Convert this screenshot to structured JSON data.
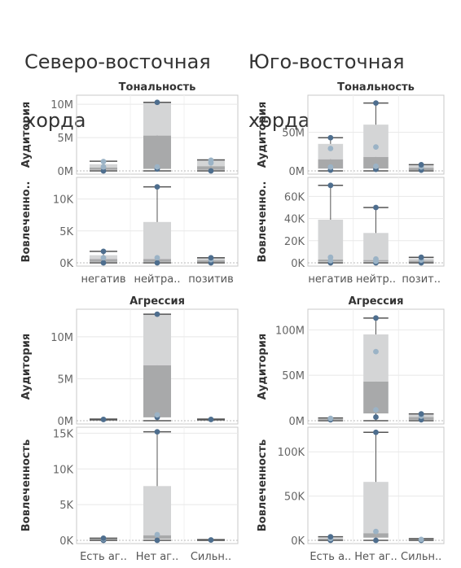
{
  "dashboards": [
    {
      "title_line1": "Северо-восточная",
      "title_line2": "хорда"
    },
    {
      "title_line1": "Юго-восточная",
      "title_line2": "хорда"
    }
  ],
  "colors": {
    "box_light": "#d4d5d6",
    "box_dark": "#a8a9aa",
    "dot": "#4e6e8e",
    "dot_light": "#9bb3c6",
    "whisker": "#555555",
    "grid": "#e8e8e8",
    "border": "#c8c8c8",
    "text": "#333333"
  },
  "chart_data": [
    {
      "type": "box",
      "section": "Тональность",
      "dashboard": "Северо-восточная хорда",
      "categories": [
        "негатив",
        "нейтра..",
        "позитив"
      ],
      "panels": [
        {
          "ylabel": "Аудитория",
          "ylim": [
            0,
            11000000
          ],
          "yticks": [
            0,
            5000000,
            10000000
          ],
          "yticklabels": [
            "0M",
            "5M",
            "10M"
          ],
          "boxes": [
            {
              "min": 0,
              "q1": 150000,
              "median": 500000,
              "q3": 1000000,
              "max": 1450000,
              "points": [
                0,
                600000,
                1400000
              ]
            },
            {
              "min": 0,
              "q1": 300000,
              "median": 5300000,
              "q3": 10300000,
              "max": 10300000,
              "points": [
                300000,
                600000,
                10300000
              ]
            },
            {
              "min": 0,
              "q1": 150000,
              "median": 700000,
              "q3": 1600000,
              "max": 1650000,
              "points": [
                0,
                1200000,
                1600000
              ]
            }
          ]
        },
        {
          "ylabel": "Вовлеченно..",
          "ylim": [
            0,
            13000
          ],
          "yticks": [
            0,
            5000,
            10000
          ],
          "yticklabels": [
            "0K",
            "5K",
            "10K"
          ],
          "boxes": [
            {
              "min": 0,
              "q1": 150,
              "median": 600,
              "q3": 1200,
              "max": 1800,
              "points": [
                0,
                800,
                1800
              ]
            },
            {
              "min": 0,
              "q1": 150,
              "median": 600,
              "q3": 6400,
              "max": 11900,
              "points": [
                0,
                800,
                11900
              ]
            },
            {
              "min": 0,
              "q1": 100,
              "median": 400,
              "q3": 700,
              "max": 800,
              "points": [
                0,
                500,
                800
              ]
            }
          ]
        }
      ]
    },
    {
      "type": "box",
      "section": "Тональность",
      "dashboard": "Юго-восточная хорда",
      "categories": [
        "негатив",
        "нейтр..",
        "позит.."
      ],
      "panels": [
        {
          "ylabel": "Аудитория",
          "ylim": [
            0,
            95000000
          ],
          "yticks": [
            0,
            50000000
          ],
          "yticklabels": [
            "0M",
            "50M"
          ],
          "boxes": [
            {
              "min": 0,
              "q1": 3000000,
              "median": 15000000,
              "q3": 35000000,
              "max": 43000000,
              "points": [
                1000000,
                5000000,
                29000000,
                43000000
              ]
            },
            {
              "min": 0,
              "q1": 3000000,
              "median": 18000000,
              "q3": 60000000,
              "max": 88000000,
              "points": [
                2000000,
                6000000,
                31000000,
                88000000
              ]
            },
            {
              "min": 0,
              "q1": 1000000,
              "median": 4000000,
              "q3": 7000000,
              "max": 8000000,
              "points": [
                1000000,
                5000000,
                8000000
              ]
            }
          ]
        },
        {
          "ylabel": "Вовлеченно..",
          "ylim": [
            0,
            75000
          ],
          "yticks": [
            0,
            20000,
            40000,
            60000
          ],
          "yticklabels": [
            "0K",
            "20K",
            "40K",
            "60K"
          ],
          "boxes": [
            {
              "min": 0,
              "q1": 1000,
              "median": 3000,
              "q3": 39000,
              "max": 70000,
              "points": [
                0,
                2000,
                5000,
                70000
              ]
            },
            {
              "min": 0,
              "q1": 1000,
              "median": 2500,
              "q3": 27000,
              "max": 50000,
              "points": [
                0,
                1500,
                3500,
                50000
              ]
            },
            {
              "min": 0,
              "q1": 500,
              "median": 2000,
              "q3": 4000,
              "max": 5000,
              "points": [
                0,
                2500,
                5000
              ]
            }
          ]
        }
      ]
    },
    {
      "type": "box",
      "section": "Агрессия",
      "dashboard": "Северо-восточная хорда",
      "categories": [
        "Есть аг..",
        "Нет аг..",
        "Сильн.."
      ],
      "panels": [
        {
          "ylabel": "Аудитория",
          "ylim": [
            0,
            13000000
          ],
          "yticks": [
            0,
            5000000,
            10000000
          ],
          "yticklabels": [
            "0M",
            "5M",
            "10M"
          ],
          "boxes": [
            {
              "min": 100000,
              "q1": 100000,
              "median": 150000,
              "q3": 200000,
              "max": 200000,
              "points": [
                150000
              ]
            },
            {
              "min": 0,
              "q1": 400000,
              "median": 6600000,
              "q3": 12700000,
              "max": 12700000,
              "points": [
                400000,
                700000,
                12700000
              ]
            },
            {
              "min": 100000,
              "q1": 100000,
              "median": 150000,
              "q3": 200000,
              "max": 200000,
              "points": [
                150000
              ]
            }
          ]
        },
        {
          "ylabel": "Вовлеченность",
          "ylim": [
            0,
            15500
          ],
          "yticks": [
            0,
            5000,
            10000,
            15000
          ],
          "yticklabels": [
            "0K",
            "5K",
            "10K",
            "15K"
          ],
          "boxes": [
            {
              "min": 0,
              "q1": 50,
              "median": 150,
              "q3": 250,
              "max": 300,
              "points": [
                0,
                200,
                300
              ]
            },
            {
              "min": 0,
              "q1": 200,
              "median": 700,
              "q3": 7600,
              "max": 15200,
              "points": [
                0,
                800,
                15200
              ]
            },
            {
              "min": 0,
              "q1": 0,
              "median": 50,
              "q3": 100,
              "max": 100,
              "points": [
                50
              ]
            }
          ]
        }
      ]
    },
    {
      "type": "box",
      "section": "Агрессия",
      "dashboard": "Юго-восточная хорда",
      "categories": [
        "Есть а..",
        "Нет аг..",
        "Сильн.."
      ],
      "panels": [
        {
          "ylabel": "Аудитория",
          "ylim": [
            0,
            120000000
          ],
          "yticks": [
            0,
            50000000,
            100000000
          ],
          "yticklabels": [
            "0M",
            "50M",
            "100M"
          ],
          "boxes": [
            {
              "min": 0,
              "q1": 1000000,
              "median": 2000000,
              "q3": 3000000,
              "max": 3000000,
              "points": [
                1000000,
                2500000
              ]
            },
            {
              "min": 0,
              "q1": 8000000,
              "median": 43000000,
              "q3": 95000000,
              "max": 113000000,
              "points": [
                4000000,
                12000000,
                76000000,
                113000000
              ]
            },
            {
              "min": 0,
              "q1": 1000000,
              "median": 4000000,
              "q3": 7000000,
              "max": 7500000,
              "points": [
                1000000,
                5000000,
                7500000
              ]
            }
          ]
        },
        {
          "ylabel": "Вовлеченность",
          "ylim": [
            0,
            125000
          ],
          "yticks": [
            0,
            50000,
            100000
          ],
          "yticklabels": [
            "0K",
            "50K",
            "100K"
          ],
          "boxes": [
            {
              "min": 0,
              "q1": 500,
              "median": 1500,
              "q3": 3000,
              "max": 4000,
              "points": [
                0,
                2000,
                4000
              ]
            },
            {
              "min": 0,
              "q1": 3000,
              "median": 8000,
              "q3": 66000,
              "max": 122000,
              "points": [
                0,
                10000,
                122000
              ]
            },
            {
              "min": 0,
              "q1": 500,
              "median": 1000,
              "q3": 1500,
              "max": 2000,
              "points": [
                0,
                1000
              ]
            }
          ]
        }
      ]
    }
  ]
}
